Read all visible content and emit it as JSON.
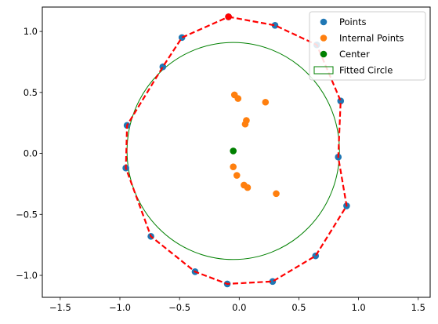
{
  "chart_data": {
    "type": "scatter",
    "xlim": [
      -1.65,
      1.6
    ],
    "ylim": [
      -1.18,
      1.2
    ],
    "xticks": [
      -1.5,
      -1.0,
      -0.5,
      0.0,
      0.5,
      1.0,
      1.5
    ],
    "xtick_labels": [
      "−1.5",
      "−1.0",
      "−0.5",
      "0.0",
      "0.5",
      "1.0",
      "1.5"
    ],
    "yticks": [
      -1.0,
      -0.5,
      0.0,
      0.5,
      1.0
    ],
    "ytick_labels": [
      "−1.0",
      "−0.5",
      "0.0",
      "0.5",
      "1.0"
    ],
    "grid": false,
    "legend_position": "upper right",
    "colors": {
      "points": "#1f77b4",
      "internal_points": "#ff7f0e",
      "center": "#008000",
      "fitted_circle": "#008000",
      "hull": "#ff0000"
    },
    "series": [
      {
        "name": "Points",
        "x": [
          -0.09,
          0.3,
          0.65,
          0.85,
          0.83,
          0.9,
          0.64,
          0.28,
          -0.1,
          -0.37,
          -0.74,
          -0.95,
          -0.94,
          -0.64,
          -0.48
        ],
        "y": [
          1.12,
          1.05,
          0.89,
          0.43,
          -0.03,
          -0.43,
          -0.84,
          -1.05,
          -1.07,
          -0.97,
          -0.68,
          -0.12,
          0.23,
          0.71,
          0.95
        ]
      },
      {
        "name": "Internal Points",
        "x": [
          -0.04,
          -0.01,
          0.22,
          0.06,
          0.05,
          -0.05,
          -0.02,
          0.04,
          0.07,
          0.31
        ],
        "y": [
          0.48,
          0.45,
          0.42,
          0.27,
          0.24,
          -0.11,
          -0.18,
          -0.26,
          -0.28,
          -0.33
        ]
      },
      {
        "name": "Center",
        "x": [
          -0.05
        ],
        "y": [
          0.02
        ]
      },
      {
        "name": "Fitted Circle",
        "center": [
          -0.05,
          0.02
        ],
        "radius": 0.89
      }
    ],
    "hull": {
      "x": [
        -0.09,
        0.3,
        0.65,
        0.85,
        0.83,
        0.9,
        0.64,
        0.28,
        -0.1,
        -0.37,
        -0.74,
        -0.95,
        -0.94,
        -0.64,
        -0.48,
        -0.09
      ],
      "y": [
        1.12,
        1.05,
        0.89,
        0.43,
        -0.03,
        -0.43,
        -0.84,
        -1.05,
        -1.07,
        -0.97,
        -0.68,
        -0.12,
        0.23,
        0.71,
        0.95,
        1.12
      ],
      "start_marker": [
        -0.09,
        1.12
      ]
    }
  }
}
